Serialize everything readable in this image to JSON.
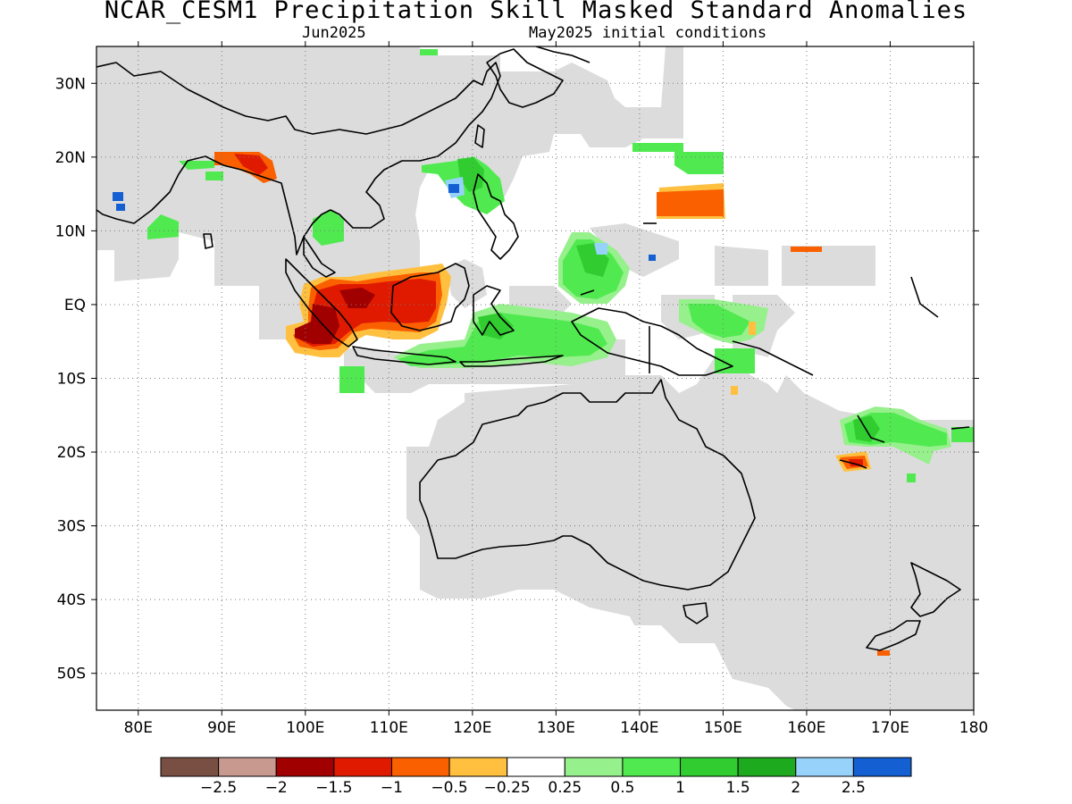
{
  "header": {
    "title": "NCAR_CESM1 Precipitation Skill Masked Standard Anomalies",
    "target_month": "Jun2025",
    "initial_conditions": "May2025 initial conditions"
  },
  "axes": {
    "lat_labels": [
      "30N",
      "20N",
      "10N",
      "EQ",
      "10S",
      "20S",
      "30S",
      "40S",
      "50S"
    ],
    "lat_values": [
      30,
      20,
      10,
      0,
      -10,
      -20,
      -30,
      -40,
      -50
    ],
    "lon_labels": [
      "80E",
      "90E",
      "100E",
      "110E",
      "120E",
      "130E",
      "140E",
      "150E",
      "160E",
      "170E",
      "180"
    ],
    "lon_values": [
      80,
      90,
      100,
      110,
      120,
      130,
      140,
      150,
      160,
      170,
      180
    ],
    "lon_range": [
      75,
      180
    ],
    "lat_range": [
      -55,
      35
    ],
    "grid": "dotted"
  },
  "colors": {
    "skill_mask": "#dcdcdc",
    "coastline": "#000000"
  },
  "colorbar": {
    "colors": [
      "#7a4f43",
      "#c89a8f",
      "#a00000",
      "#e01a00",
      "#fa6000",
      "#ffc040",
      "#ffffff",
      "#96f08c",
      "#50ea50",
      "#30cc30",
      "#1eaa1e",
      "#96d2fa",
      "#1460d2"
    ],
    "labels": [
      "−2.5",
      "−2",
      "−1.5",
      "−1",
      "−0.5",
      "−0.25",
      "0.25",
      "0.5",
      "1",
      "1.5",
      "2",
      "2.5"
    ]
  }
}
